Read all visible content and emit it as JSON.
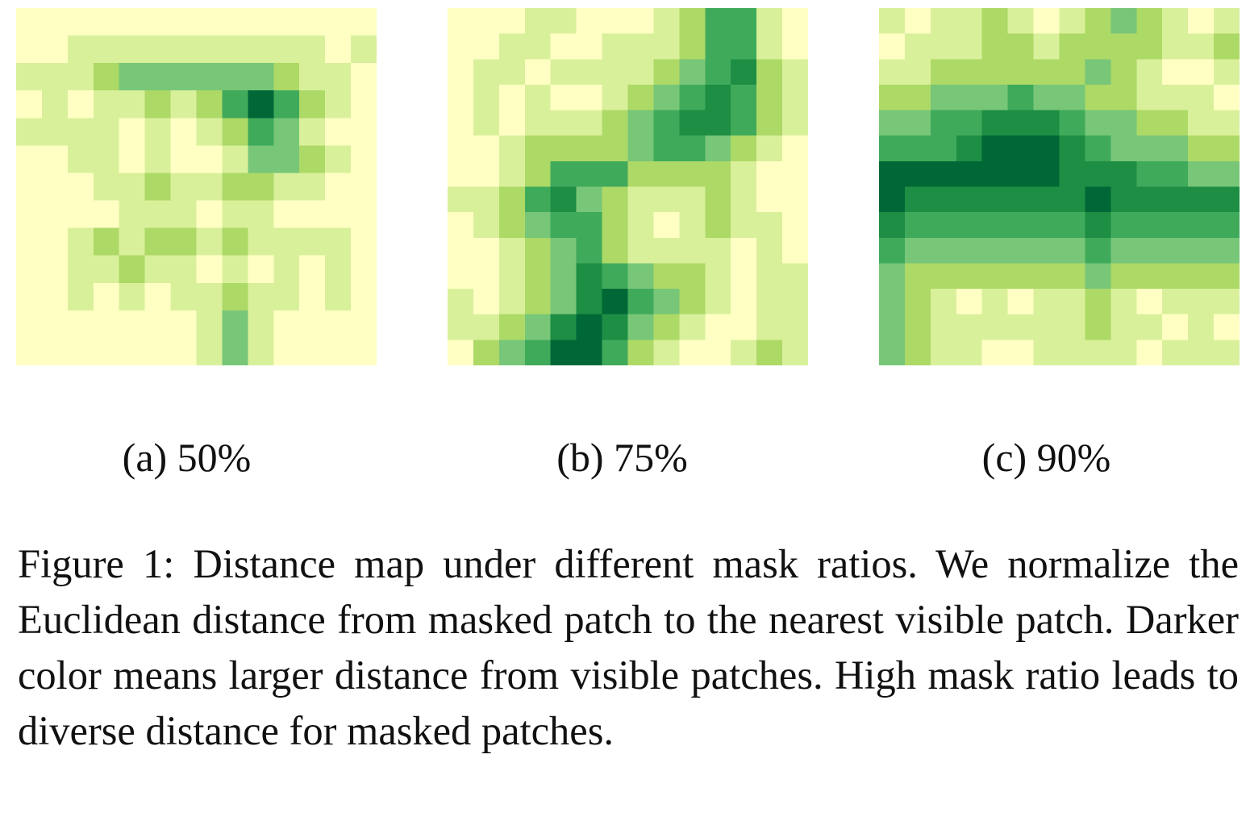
{
  "figure": {
    "caption": "Figure 1: Distance map under different mask ratios. We nor­malize the Euclidean distance from masked patch to the nearest visible patch. Darker color means larger distance from visible patches. High mask ratio leads to diverse dis­tance for masked patches.",
    "colors": {
      "scale": [
        "#ffffc4",
        "#d9f09b",
        "#add966",
        "#78c678",
        "#40aa5b",
        "#1d8e44",
        "#006837"
      ]
    },
    "panels": [
      {
        "label": "(a) 50%",
        "mask_ratio": "50%",
        "grid": [
          [
            0,
            0,
            0,
            0,
            0,
            0,
            0,
            0,
            0,
            0,
            0,
            0,
            0,
            0
          ],
          [
            0,
            0,
            1,
            1,
            1,
            1,
            1,
            1,
            1,
            1,
            1,
            1,
            0,
            1
          ],
          [
            1,
            1,
            1,
            2,
            3,
            3,
            3,
            3,
            3,
            3,
            2,
            1,
            1,
            0
          ],
          [
            0,
            1,
            0,
            1,
            1,
            2,
            1,
            2,
            4,
            6,
            4,
            2,
            1,
            0
          ],
          [
            1,
            1,
            1,
            1,
            0,
            1,
            0,
            1,
            2,
            4,
            3,
            1,
            0,
            0
          ],
          [
            0,
            0,
            1,
            1,
            0,
            1,
            0,
            0,
            1,
            3,
            3,
            2,
            1,
            0
          ],
          [
            0,
            0,
            0,
            1,
            1,
            2,
            1,
            1,
            2,
            2,
            1,
            1,
            0,
            0
          ],
          [
            0,
            0,
            0,
            0,
            1,
            1,
            1,
            0,
            1,
            1,
            0,
            0,
            0,
            0
          ],
          [
            0,
            0,
            1,
            2,
            1,
            2,
            2,
            1,
            2,
            1,
            1,
            1,
            1,
            0
          ],
          [
            0,
            0,
            1,
            1,
            2,
            1,
            1,
            0,
            1,
            0,
            1,
            0,
            1,
            0
          ],
          [
            0,
            0,
            1,
            0,
            1,
            0,
            1,
            1,
            2,
            1,
            1,
            0,
            1,
            0
          ],
          [
            0,
            0,
            0,
            0,
            0,
            0,
            0,
            1,
            3,
            1,
            0,
            0,
            0,
            0
          ],
          [
            0,
            0,
            0,
            0,
            0,
            0,
            0,
            1,
            3,
            1,
            0,
            0,
            0,
            0
          ]
        ]
      },
      {
        "label": "(b) 75%",
        "mask_ratio": "75%",
        "grid": [
          [
            0,
            0,
            0,
            1,
            1,
            0,
            0,
            0,
            1,
            2,
            4,
            4,
            1,
            0
          ],
          [
            0,
            0,
            1,
            1,
            0,
            0,
            1,
            1,
            1,
            2,
            4,
            4,
            1,
            0
          ],
          [
            0,
            1,
            1,
            0,
            1,
            1,
            1,
            1,
            2,
            3,
            4,
            5,
            2,
            1
          ],
          [
            0,
            1,
            0,
            1,
            0,
            0,
            1,
            2,
            3,
            4,
            5,
            4,
            2,
            1
          ],
          [
            0,
            1,
            0,
            1,
            1,
            1,
            2,
            3,
            4,
            5,
            5,
            4,
            2,
            1
          ],
          [
            0,
            0,
            1,
            2,
            2,
            2,
            2,
            3,
            4,
            4,
            3,
            2,
            1,
            0
          ],
          [
            0,
            0,
            1,
            2,
            4,
            4,
            4,
            2,
            2,
            2,
            2,
            1,
            0,
            0
          ],
          [
            1,
            1,
            2,
            4,
            5,
            3,
            2,
            1,
            1,
            1,
            2,
            1,
            0,
            0
          ],
          [
            0,
            1,
            2,
            3,
            4,
            4,
            2,
            1,
            0,
            1,
            2,
            1,
            1,
            0
          ],
          [
            0,
            0,
            1,
            2,
            3,
            4,
            2,
            1,
            1,
            1,
            1,
            0,
            1,
            0
          ],
          [
            0,
            0,
            1,
            2,
            3,
            5,
            4,
            3,
            2,
            2,
            1,
            0,
            1,
            1
          ],
          [
            1,
            0,
            1,
            2,
            3,
            5,
            6,
            4,
            3,
            2,
            1,
            0,
            1,
            1
          ],
          [
            1,
            1,
            2,
            3,
            5,
            6,
            5,
            3,
            2,
            1,
            0,
            0,
            1,
            1
          ],
          [
            0,
            2,
            3,
            4,
            6,
            6,
            4,
            2,
            1,
            0,
            0,
            1,
            2,
            1
          ]
        ]
      },
      {
        "label": "(c) 90%",
        "mask_ratio": "90%",
        "grid": [
          [
            1,
            0,
            1,
            1,
            2,
            1,
            0,
            1,
            2,
            3,
            2,
            1,
            0,
            1
          ],
          [
            0,
            1,
            1,
            1,
            2,
            2,
            1,
            2,
            2,
            2,
            2,
            1,
            1,
            2
          ],
          [
            1,
            1,
            2,
            2,
            2,
            2,
            2,
            2,
            3,
            2,
            1,
            0,
            0,
            1
          ],
          [
            2,
            2,
            3,
            3,
            3,
            4,
            3,
            3,
            2,
            2,
            1,
            1,
            1,
            0
          ],
          [
            3,
            3,
            4,
            4,
            5,
            5,
            5,
            4,
            3,
            3,
            2,
            2,
            1,
            1
          ],
          [
            4,
            4,
            4,
            5,
            6,
            6,
            6,
            5,
            4,
            3,
            3,
            3,
            2,
            2
          ],
          [
            6,
            6,
            6,
            6,
            6,
            6,
            6,
            5,
            5,
            5,
            4,
            4,
            3,
            3
          ],
          [
            6,
            5,
            5,
            5,
            5,
            5,
            5,
            5,
            6,
            5,
            5,
            5,
            5,
            5
          ],
          [
            5,
            4,
            4,
            4,
            4,
            4,
            4,
            4,
            5,
            4,
            4,
            4,
            4,
            4
          ],
          [
            4,
            3,
            3,
            3,
            3,
            3,
            3,
            3,
            4,
            3,
            3,
            3,
            3,
            3
          ],
          [
            3,
            2,
            2,
            2,
            2,
            2,
            2,
            2,
            3,
            2,
            2,
            2,
            2,
            2
          ],
          [
            3,
            2,
            1,
            0,
            1,
            0,
            1,
            1,
            2,
            1,
            0,
            1,
            1,
            1
          ],
          [
            3,
            2,
            1,
            1,
            1,
            1,
            1,
            1,
            2,
            1,
            1,
            0,
            1,
            0
          ],
          [
            3,
            2,
            1,
            1,
            0,
            0,
            1,
            1,
            1,
            1,
            0,
            1,
            1,
            1
          ]
        ]
      }
    ]
  }
}
